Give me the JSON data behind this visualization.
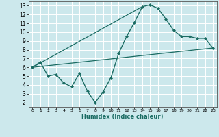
{
  "xlabel": "Humidex (Indice chaleur)",
  "bg_color": "#cce8ec",
  "line_color": "#1a6b62",
  "grid_color": "#b0d4d8",
  "xlim": [
    -0.5,
    23.5
  ],
  "ylim": [
    1.5,
    13.5
  ],
  "xticks": [
    0,
    1,
    2,
    3,
    4,
    5,
    6,
    7,
    8,
    9,
    10,
    11,
    12,
    13,
    14,
    15,
    16,
    17,
    18,
    19,
    20,
    21,
    22,
    23
  ],
  "yticks": [
    2,
    3,
    4,
    5,
    6,
    7,
    8,
    9,
    10,
    11,
    12,
    13
  ],
  "main_x": [
    0,
    1,
    2,
    3,
    4,
    5,
    6,
    7,
    8,
    9,
    10,
    11,
    12,
    13,
    14,
    15,
    16,
    17,
    18,
    19,
    20,
    21,
    22,
    23
  ],
  "main_y": [
    6.0,
    6.6,
    5.0,
    5.2,
    4.2,
    3.8,
    5.3,
    3.3,
    2.0,
    3.2,
    4.8,
    7.6,
    9.5,
    11.1,
    12.9,
    13.1,
    12.7,
    11.5,
    10.2,
    9.5,
    9.5,
    9.3,
    9.3,
    8.2
  ],
  "trend1_x": [
    0,
    23
  ],
  "trend1_y": [
    6.0,
    8.2
  ],
  "trend2_x": [
    0,
    14
  ],
  "trend2_y": [
    6.0,
    12.9
  ]
}
